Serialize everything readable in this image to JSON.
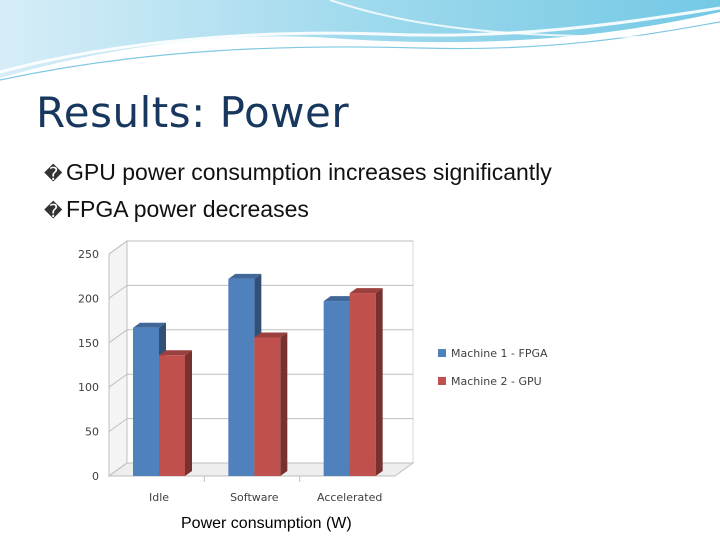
{
  "slide": {
    "title": "Results: Power",
    "bullets": [
      "GPU power consumption increases significantly",
      "FPGA power decreases"
    ],
    "bullet_glyph": "�",
    "caption": "Power consumption (W)"
  },
  "colors": {
    "title": "#17375e",
    "series1": "#4f81bd",
    "series2": "#c0504d"
  },
  "chart_data": {
    "type": "bar",
    "style": "3d-clustered-column",
    "categories": [
      "Idle",
      "Software",
      "Accelerated"
    ],
    "series": [
      {
        "name": "Machine 1 - FPGA",
        "values": [
          167,
          222,
          197
        ]
      },
      {
        "name": "Machine 2 - GPU",
        "values": [
          136,
          156,
          206
        ]
      }
    ],
    "yticks": [
      "0",
      "50",
      "100",
      "150",
      "200",
      "250"
    ],
    "ylim": [
      0,
      250
    ],
    "xlabel": "",
    "ylabel": "",
    "grid": true,
    "legend_position": "right"
  }
}
